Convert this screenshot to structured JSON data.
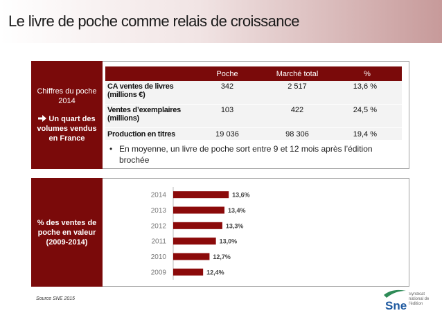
{
  "title": "Le livre de poche comme relais de croissance",
  "panel1": {
    "side_title": "Chiffres du poche 2014",
    "side_note": "Un quart des volumes vendus en France",
    "table": {
      "header": [
        "",
        "Poche",
        "Marché total",
        "%"
      ],
      "rows": [
        [
          "CA ventes de livres (millions €)",
          "342",
          "2 517",
          "13,6 %"
        ],
        [
          "Ventes d’exemplaires (millions)",
          "103",
          "422",
          "24,5 %"
        ],
        [
          "Production en titres",
          "19 036",
          "98 306",
          "19,4 %"
        ]
      ]
    },
    "bullet": "En moyenne, un livre de poche sort entre 9 et 12 mois après l’édition brochée"
  },
  "panel2": {
    "side_title": "% des ventes de poche en valeur (2009-2014)",
    "chart_data": {
      "type": "bar",
      "orientation": "horizontal",
      "color": "#8b0a0a",
      "categories": [
        "2014",
        "2013",
        "2012",
        "2011",
        "2010",
        "2009"
      ],
      "values": [
        13.6,
        13.4,
        13.3,
        13.0,
        12.7,
        12.4
      ],
      "value_labels": [
        "13,6%",
        "13,4%",
        "13,3%",
        "13,0%",
        "12,7%",
        "12,4%"
      ],
      "xlim": [
        11,
        14
      ]
    }
  },
  "source": "Source SNE 2015",
  "logo": {
    "mark": "Sne",
    "text": "Syndicat national de l'édition"
  }
}
